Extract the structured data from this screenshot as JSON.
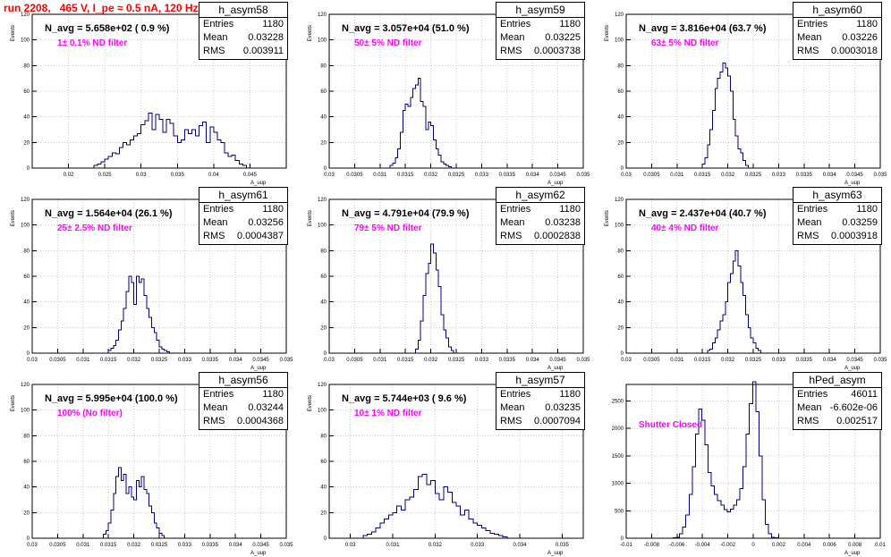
{
  "canvas_title": "run 2208,   465 V, I_pe ≈ 0.5 nA, 120 Hz",
  "stats_labels": {
    "entries": "Entries",
    "mean": "Mean",
    "rms": "RMS"
  },
  "chart_data": [
    {
      "type": "bar",
      "name": "h_asym58",
      "title": "N_avg = 5.658e+02 ( 0.9 %)",
      "annotation": "1± 0.1% ND filter",
      "xlabel": "A_uup",
      "ylabel": "Events",
      "stats": {
        "entries": "1180",
        "mean": "0.03228",
        "rms": "0.003911"
      },
      "xlim": [
        0.015,
        0.05
      ],
      "ylim": [
        0,
        120
      ],
      "xticks": [
        "0.02",
        "0.025",
        "0.03",
        "0.035",
        "0.04",
        "0.045"
      ],
      "yticks": [
        "0",
        "20",
        "40",
        "60",
        "80",
        "100",
        "120"
      ],
      "bin_start": 0.0235,
      "bin_width": 0.0005,
      "values": [
        2,
        3,
        5,
        7,
        9,
        12,
        11,
        16,
        20,
        18,
        22,
        25,
        27,
        34,
        37,
        43,
        30,
        42,
        38,
        28,
        38,
        35,
        25,
        20,
        22,
        30,
        27,
        30,
        25,
        33,
        36,
        20,
        32,
        28,
        22,
        20,
        12,
        9,
        10,
        6,
        3,
        2
      ]
    },
    {
      "type": "bar",
      "name": "h_asym59",
      "title": "N_avg = 3.057e+04 (51.0 %)",
      "annotation": "50± 5% ND filter",
      "xlabel": "A_uup",
      "ylabel": "Events",
      "stats": {
        "entries": "1180",
        "mean": "0.03225",
        "rms": "0.0003738"
      },
      "xlim": [
        0.03,
        0.035
      ],
      "ylim": [
        0,
        120
      ],
      "xticks": [
        "0.03",
        "0.0305",
        "0.031",
        "0.0315",
        "0.032",
        "0.0325",
        "0.033",
        "0.0335",
        "0.034",
        "0.0345",
        "0.035"
      ],
      "yticks": [
        "0",
        "20",
        "40",
        "60",
        "80",
        "100",
        "120"
      ],
      "bin_start": 0.0312,
      "bin_width": 5e-05,
      "values": [
        2,
        4,
        8,
        15,
        28,
        45,
        50,
        48,
        55,
        62,
        65,
        70,
        52,
        48,
        30,
        36,
        33,
        22,
        15,
        10,
        5,
        3,
        2,
        1
      ]
    },
    {
      "type": "bar",
      "name": "h_asym60",
      "title": "N_avg = 3.816e+04 (63.7 %)",
      "annotation": "63± 5% ND filter",
      "xlabel": "A_uup",
      "ylabel": "Events",
      "stats": {
        "entries": "1180",
        "mean": "0.03226",
        "rms": "0.0003018"
      },
      "xlim": [
        0.03,
        0.035
      ],
      "ylim": [
        0,
        120
      ],
      "xticks": [
        "0.03",
        "0.0305",
        "0.031",
        "0.0315",
        "0.032",
        "0.0325",
        "0.033",
        "0.0335",
        "0.034",
        "0.0345",
        "0.035"
      ],
      "yticks": [
        "0",
        "20",
        "40",
        "60",
        "80",
        "100",
        "120"
      ],
      "bin_start": 0.0315,
      "bin_width": 5e-05,
      "values": [
        3,
        8,
        18,
        30,
        45,
        62,
        70,
        75,
        82,
        78,
        72,
        60,
        38,
        25,
        15,
        12,
        6,
        2
      ]
    },
    {
      "type": "bar",
      "name": "h_asym61",
      "title": "N_avg = 1.564e+04 (26.1 %)",
      "annotation": "25± 2.5% ND filter",
      "xlabel": "A_uup",
      "ylabel": "Events",
      "stats": {
        "entries": "1180",
        "mean": "0.03256",
        "rms": "0.0004387"
      },
      "xlim": [
        0.03,
        0.035
      ],
      "ylim": [
        0,
        120
      ],
      "xticks": [
        "0.03",
        "0.0305",
        "0.031",
        "0.0315",
        "0.032",
        "0.0325",
        "0.033",
        "0.0335",
        "0.034",
        "0.0345",
        "0.035"
      ],
      "yticks": [
        "0",
        "20",
        "40",
        "60",
        "80",
        "100",
        "120"
      ],
      "bin_start": 0.0315,
      "bin_width": 5e-05,
      "values": [
        2,
        4,
        6,
        10,
        18,
        25,
        35,
        48,
        60,
        55,
        38,
        60,
        55,
        58,
        45,
        35,
        28,
        20,
        16,
        10,
        5,
        3,
        2,
        1
      ]
    },
    {
      "type": "bar",
      "name": "h_asym62",
      "title": "N_avg = 4.791e+04 (79.9 %)",
      "annotation": "79± 5% ND filter",
      "xlabel": "A_uup",
      "ylabel": "Events",
      "stats": {
        "entries": "1180",
        "mean": "0.03238",
        "rms": "0.0002838"
      },
      "xlim": [
        0.03,
        0.035
      ],
      "ylim": [
        0,
        120
      ],
      "xticks": [
        "0.03",
        "0.0305",
        "0.031",
        "0.0315",
        "0.032",
        "0.0325",
        "0.033",
        "0.0335",
        "0.034",
        "0.0345",
        "0.035"
      ],
      "yticks": [
        "0",
        "20",
        "40",
        "60",
        "80",
        "100",
        "120"
      ],
      "bin_start": 0.0317,
      "bin_width": 5e-05,
      "values": [
        3,
        10,
        25,
        45,
        62,
        70,
        85,
        78,
        65,
        52,
        30,
        18,
        12,
        5,
        2
      ]
    },
    {
      "type": "bar",
      "name": "h_asym63",
      "title": "N_avg = 2.437e+04 (40.7 %)",
      "annotation": "40± 4% ND filter",
      "xlabel": "A_uup",
      "ylabel": "Events",
      "stats": {
        "entries": "1180",
        "mean": "0.03259",
        "rms": "0.0003918"
      },
      "xlim": [
        0.03,
        0.035
      ],
      "ylim": [
        0,
        120
      ],
      "xticks": [
        "0.03",
        "0.0305",
        "0.031",
        "0.0315",
        "0.032",
        "0.0325",
        "0.033",
        "0.0335",
        "0.034",
        "0.0345",
        "0.035"
      ],
      "yticks": [
        "0",
        "20",
        "40",
        "60",
        "80",
        "100",
        "120"
      ],
      "bin_start": 0.0316,
      "bin_width": 5e-05,
      "values": [
        2,
        3,
        8,
        12,
        18,
        25,
        30,
        40,
        55,
        62,
        72,
        80,
        68,
        55,
        45,
        30,
        20,
        12,
        8,
        4,
        2
      ]
    },
    {
      "type": "bar",
      "name": "h_asym56",
      "title": "N_avg = 5.995e+04 (100.0 %)",
      "annotation": "100% (No filter)",
      "xlabel": "A_uup",
      "ylabel": "Events",
      "stats": {
        "entries": "1180",
        "mean": "0.03244",
        "rms": "0.0004368"
      },
      "xlim": [
        0.03,
        0.035
      ],
      "ylim": [
        0,
        120
      ],
      "xticks": [
        "0.03",
        "0.0305",
        "0.031",
        "0.0315",
        "0.032",
        "0.0325",
        "0.033",
        "0.0335",
        "0.034",
        "0.0345",
        "0.035"
      ],
      "yticks": [
        "0",
        "20",
        "40",
        "60",
        "80",
        "100",
        "120"
      ],
      "bin_start": 0.0314,
      "bin_width": 5e-05,
      "values": [
        3,
        6,
        12,
        22,
        35,
        48,
        55,
        45,
        50,
        35,
        40,
        32,
        30,
        45,
        40,
        48,
        38,
        35,
        25,
        20,
        12,
        8,
        4,
        2
      ]
    },
    {
      "type": "bar",
      "name": "h_asym57",
      "title": "N_avg = 5.744e+03 ( 9.6 %)",
      "annotation": "10± 1% ND filter",
      "xlabel": "A_uup",
      "ylabel": "Events",
      "stats": {
        "entries": "1180",
        "mean": "0.03235",
        "rms": "0.0007094"
      },
      "xlim": [
        0.0295,
        0.0355
      ],
      "ylim": [
        0,
        120
      ],
      "xticks": [
        "0.03",
        "0.031",
        "0.032",
        "0.033",
        "0.034",
        "0.035"
      ],
      "yticks": [
        "0",
        "20",
        "40",
        "60",
        "80",
        "100",
        "120"
      ],
      "bin_start": 0.0303,
      "bin_width": 0.0001,
      "values": [
        2,
        3,
        5,
        8,
        12,
        15,
        18,
        20,
        25,
        22,
        30,
        32,
        38,
        48,
        50,
        42,
        45,
        35,
        30,
        40,
        36,
        28,
        25,
        18,
        22,
        15,
        12,
        10,
        8,
        6,
        4,
        3,
        2,
        1
      ]
    },
    {
      "type": "bar",
      "name": "hPed_asym",
      "title": "",
      "annotation": "Shutter Closed",
      "xlabel": "A_uup",
      "ylabel": "",
      "stats": {
        "entries": "46011",
        "mean": "-6.602e-06",
        "rms": "0.002517"
      },
      "xlim": [
        -0.01,
        0.01
      ],
      "ylim": [
        0,
        2800
      ],
      "xticks": [
        "-0.01",
        "-0.008",
        "-0.006",
        "-0.004",
        "-0.002",
        "0",
        "0.002",
        "0.004",
        "0.006",
        "0.008",
        "0.01"
      ],
      "yticks": [
        "0",
        "500",
        "1000",
        "1500",
        "2000",
        "2500"
      ],
      "bin_start": -0.0063,
      "bin_width": 0.00025,
      "values": [
        5,
        20,
        80,
        200,
        420,
        800,
        1300,
        1900,
        2350,
        2150,
        1700,
        1200,
        950,
        800,
        680,
        600,
        520,
        480,
        530,
        600,
        700,
        900,
        1300,
        1900,
        2450,
        2850,
        2300,
        1500,
        700,
        250,
        80,
        20,
        5
      ]
    }
  ]
}
